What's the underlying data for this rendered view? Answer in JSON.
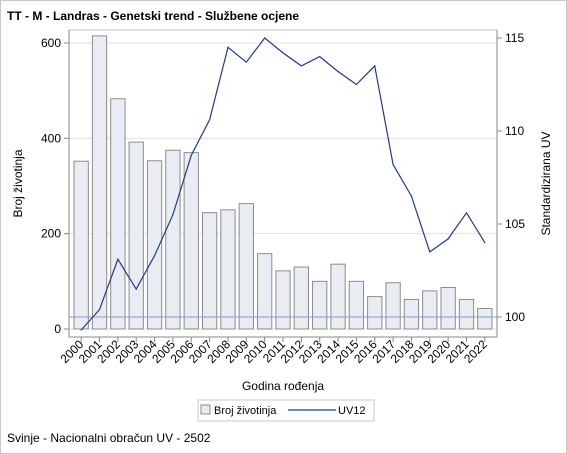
{
  "title": "TT - M - Landras - Genetski trend - Službene ocjene",
  "footnote": "Svinje - Nacionalni obračun UV - 2502",
  "chart_data": {
    "type": "bar+line",
    "title": "TT - M - Landras - Genetski trend - Službene ocjene",
    "xlabel": "Godina rođenja",
    "ylabel_left": "Broj životinja",
    "ylabel_right": "Standardizirana UV",
    "categories": [
      "2000",
      "2001",
      "2002",
      "2003",
      "2004",
      "2005",
      "2006",
      "2007",
      "2008",
      "2009",
      "2010",
      "2011",
      "2012",
      "2013",
      "2014",
      "2015",
      "2016",
      "2017",
      "2018",
      "2019",
      "2020",
      "2021",
      "2022"
    ],
    "y_left_ticks": [
      0,
      200,
      400,
      600
    ],
    "y_left_range": [
      0,
      650
    ],
    "y_right_ticks": [
      100,
      105,
      110,
      115
    ],
    "y_right_range": [
      99.3,
      115.4
    ],
    "reference_line_right": 100,
    "series": [
      {
        "name": "Broj životinja",
        "type": "bar",
        "axis": "left",
        "color": "#e9ecf2",
        "stroke": "#8c8c8c",
        "values": [
          352,
          615,
          483,
          392,
          353,
          375,
          370,
          244,
          250,
          263,
          158,
          122,
          130,
          100,
          136,
          100,
          68,
          97,
          62,
          80,
          87,
          62,
          43
        ]
      },
      {
        "name": "UV12",
        "type": "line",
        "axis": "right",
        "color": "#1f3c8c",
        "values": [
          99.3,
          100.4,
          103.1,
          101.5,
          103.3,
          105.5,
          108.7,
          110.6,
          114.5,
          113.7,
          115.0,
          114.2,
          113.5,
          114.0,
          113.2,
          112.5,
          113.5,
          108.2,
          106.5,
          103.5,
          104.2,
          105.6,
          104.0
        ]
      }
    ],
    "grid": true,
    "legend_position": "bottom"
  }
}
